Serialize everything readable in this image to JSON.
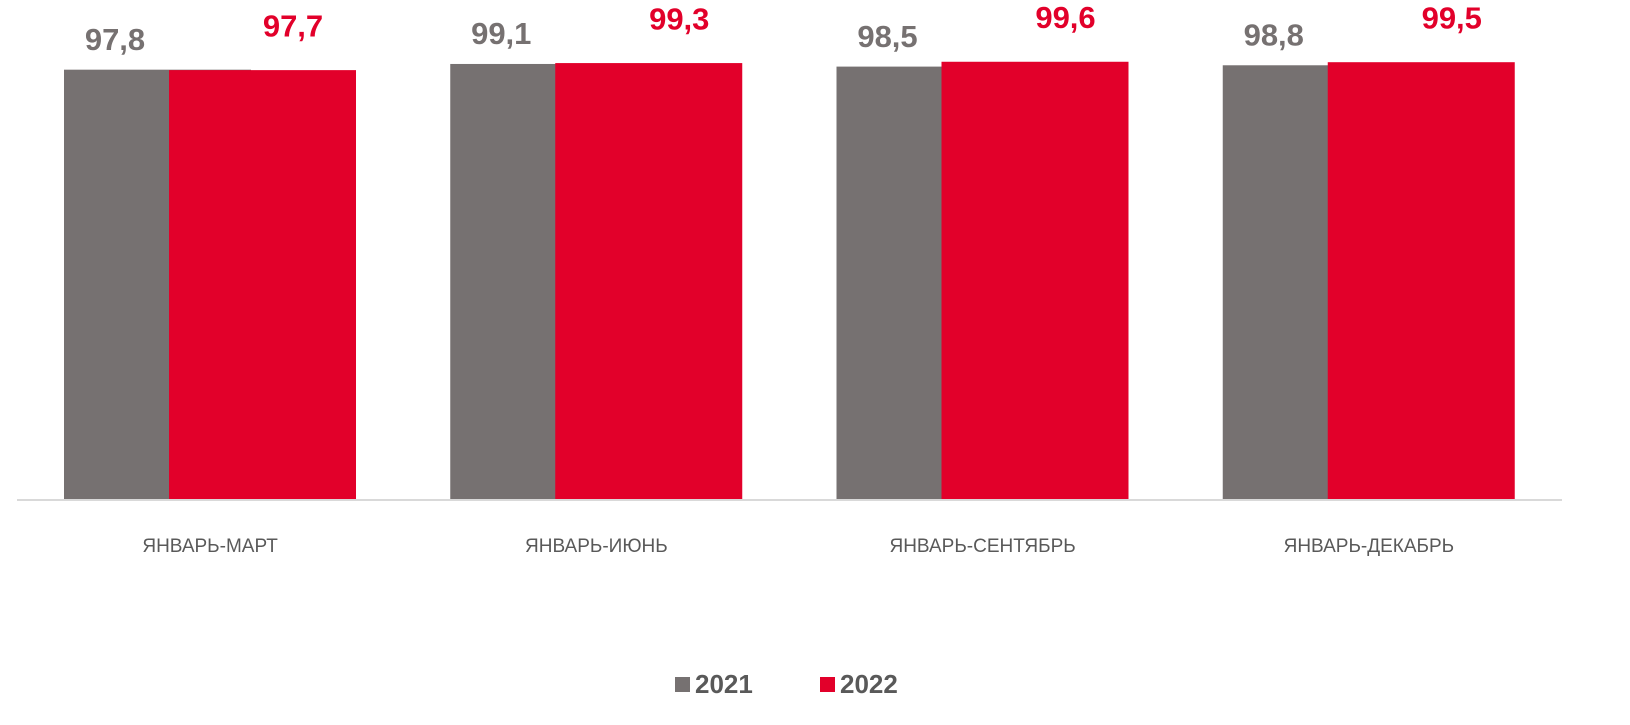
{
  "chart_data": {
    "type": "bar",
    "categories": [
      "ЯНВАРЬ-МАРТ",
      "ЯНВАРЬ-ИЮНЬ",
      "ЯНВАРЬ-СЕНТЯБРЬ",
      "ЯНВАРЬ-ДЕКАБРЬ"
    ],
    "series": [
      {
        "name": "2021",
        "color": "#767171",
        "values": [
          97.8,
          99.1,
          98.5,
          98.8
        ],
        "value_labels": [
          "97,8",
          "99,1",
          "98,5",
          "98,8"
        ]
      },
      {
        "name": "2022",
        "color": "#e2002a",
        "values": [
          97.7,
          99.3,
          99.6,
          99.5
        ],
        "value_labels": [
          "97,7",
          "99,3",
          "99,6",
          "99,5"
        ]
      }
    ],
    "ylim": [
      0,
      100
    ],
    "legend": "bottom"
  }
}
